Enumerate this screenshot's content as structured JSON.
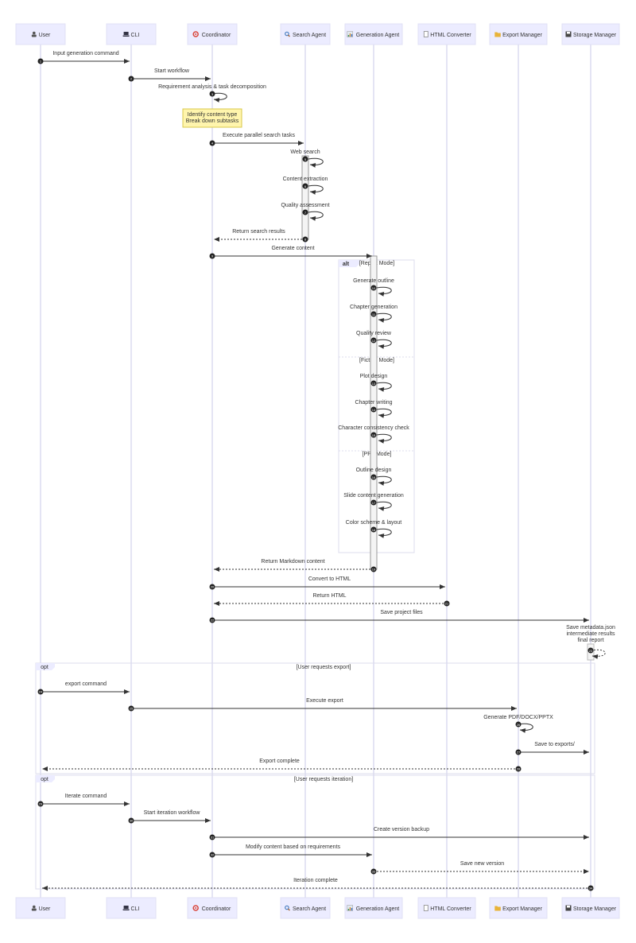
{
  "participants": [
    {
      "name": "User",
      "icon": "user-icon",
      "icon_color": "#555555"
    },
    {
      "name": "CLI",
      "icon": "laptop-icon",
      "icon_color": "#333344"
    },
    {
      "name": "Coordinator",
      "icon": "target-icon",
      "icon_color": "#d9453a"
    },
    {
      "name": "Search Agent",
      "icon": "magnifier-icon",
      "icon_color": "#4a7fc1"
    },
    {
      "name": "Generation Agent",
      "icon": "bar-chart-icon",
      "icon_color": "#3f8f5a"
    },
    {
      "name": "HTML Converter",
      "icon": "document-icon",
      "icon_color": "#888888"
    },
    {
      "name": "Export Manager",
      "icon": "folder-icon",
      "icon_color": "#e8b33a"
    },
    {
      "name": "Storage Manager",
      "icon": "floppy-disk-icon",
      "icon_color": "#444444"
    }
  ],
  "messages": [
    {
      "n": 1,
      "from": 0,
      "to": 1,
      "label": "Input generation command"
    },
    {
      "n": 2,
      "from": 1,
      "to": 2,
      "label": "Start workflow"
    },
    {
      "n": 3,
      "from": 2,
      "to": 2,
      "label": "Requirement analysis & task decomposition"
    },
    {
      "n": 4,
      "from": 2,
      "to": 3,
      "label": "Execute parallel search tasks"
    },
    {
      "n": 5,
      "from": 3,
      "to": 3,
      "label": "Web search"
    },
    {
      "n": 6,
      "from": 3,
      "to": 3,
      "label": "Content extraction"
    },
    {
      "n": 7,
      "from": 3,
      "to": 3,
      "label": "Quality assessment"
    },
    {
      "n": 8,
      "from": 3,
      "to": 2,
      "label": "Return search results",
      "dashed": true
    },
    {
      "n": 9,
      "from": 2,
      "to": 4,
      "label": "Generate content"
    },
    {
      "n": 10,
      "from": 4,
      "to": 4,
      "label": "Generate outline"
    },
    {
      "n": 11,
      "from": 4,
      "to": 4,
      "label": "Chapter generation"
    },
    {
      "n": 12,
      "from": 4,
      "to": 4,
      "label": "Quality review"
    },
    {
      "n": 13,
      "from": 4,
      "to": 4,
      "label": "Plot design"
    },
    {
      "n": 14,
      "from": 4,
      "to": 4,
      "label": "Chapter writing"
    },
    {
      "n": 15,
      "from": 4,
      "to": 4,
      "label": "Character consistency check"
    },
    {
      "n": 16,
      "from": 4,
      "to": 4,
      "label": "Outline design"
    },
    {
      "n": 17,
      "from": 4,
      "to": 4,
      "label": "Slide content generation"
    },
    {
      "n": 18,
      "from": 4,
      "to": 4,
      "label": "Color scheme & layout"
    },
    {
      "n": 19,
      "from": 4,
      "to": 2,
      "label": "Return Markdown content",
      "dashed": true
    },
    {
      "n": 20,
      "from": 2,
      "to": 5,
      "label": "Convert to HTML"
    },
    {
      "n": 21,
      "from": 5,
      "to": 2,
      "label": "Return HTML",
      "dashed": true
    },
    {
      "n": 22,
      "from": 2,
      "to": 7,
      "label": "Save project files"
    },
    {
      "n": 23,
      "from": 7,
      "to": 7,
      "label": "Save metadata.json\nintermediate results\nfinal report",
      "dashed": true
    },
    {
      "n": 24,
      "from": 0,
      "to": 1,
      "label": "export command"
    },
    {
      "n": 25,
      "from": 1,
      "to": 6,
      "label": "Execute export"
    },
    {
      "n": 26,
      "from": 6,
      "to": 6,
      "label": "Generate PDF/DOCX/PPTX"
    },
    {
      "n": 27,
      "from": 6,
      "to": 7,
      "label": "Save to exports/"
    },
    {
      "n": 28,
      "from": 6,
      "to": 0,
      "label": "Export complete",
      "dashed": true
    },
    {
      "n": 29,
      "from": 0,
      "to": 1,
      "label": "Iterate command"
    },
    {
      "n": 30,
      "from": 1,
      "to": 2,
      "label": "Start iteration workflow"
    },
    {
      "n": 31,
      "from": 2,
      "to": 7,
      "label": "Create version backup"
    },
    {
      "n": 32,
      "from": 2,
      "to": 4,
      "label": "Modify content based on requirements"
    },
    {
      "n": 33,
      "from": 4,
      "to": 7,
      "label": "Save new version",
      "dashed": true
    },
    {
      "n": 34,
      "from": 7,
      "to": 0,
      "label": "Iteration complete",
      "dashed": true
    }
  ],
  "note": {
    "over": 2,
    "lines": [
      "Identify content type",
      "Break down subtasks"
    ]
  },
  "alt": {
    "keyword": "alt",
    "sections": [
      "[Report Mode]",
      "[Fiction Mode]",
      "[PPT Mode]"
    ]
  },
  "opts": [
    {
      "keyword": "opt",
      "label": "[User requests export]"
    },
    {
      "keyword": "opt",
      "label": "[User requests iteration]"
    }
  ],
  "colors": {
    "actor_fill": "#ececff",
    "actor_stroke": "#e0e0f5",
    "lifeline": "#c8c8e8",
    "note_fill": "#fff5ad",
    "note_stroke": "#d8c84a",
    "text": "#333333",
    "arrow": "#333333"
  }
}
